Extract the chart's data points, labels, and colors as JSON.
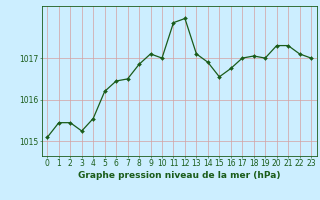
{
  "x": [
    0,
    1,
    2,
    3,
    4,
    5,
    6,
    7,
    8,
    9,
    10,
    11,
    12,
    13,
    14,
    15,
    16,
    17,
    18,
    19,
    20,
    21,
    22,
    23
  ],
  "y": [
    1015.1,
    1015.45,
    1015.45,
    1015.25,
    1015.55,
    1016.2,
    1016.45,
    1016.5,
    1016.85,
    1017.1,
    1017.0,
    1017.85,
    1017.95,
    1017.1,
    1016.9,
    1016.55,
    1016.75,
    1017.0,
    1017.05,
    1017.0,
    1017.3,
    1017.3,
    1017.1,
    1017.0
  ],
  "line_color": "#1a5c1a",
  "marker": "D",
  "marker_size": 2.0,
  "line_width": 0.9,
  "bg_color": "#cceeff",
  "grid_color_v": "#d4a0a0",
  "grid_color_h": "#d4a0a0",
  "xlabel": "Graphe pression niveau de la mer (hPa)",
  "xlabel_fontsize": 6.5,
  "xlabel_color": "#1a5c1a",
  "tick_color": "#1a5c1a",
  "tick_fontsize": 5.5,
  "ytick_labels": [
    "1015",
    "1016",
    "1017"
  ],
  "ytick_values": [
    1015,
    1016,
    1017
  ],
  "ylim": [
    1014.65,
    1018.25
  ],
  "xlim": [
    -0.5,
    23.5
  ]
}
